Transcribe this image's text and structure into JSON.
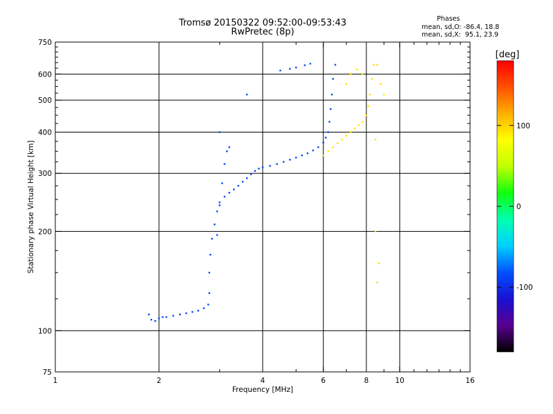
{
  "header": {
    "title_line1": "Tromsø 20150322 09:52:00-09:53:43",
    "title_line2": "RwPretec (8p)"
  },
  "stats": {
    "heading": "Phases",
    "o_mode": "mean, sd,O: -86.4, 18.8",
    "x_mode": "mean, sd,X:  95.1, 23.9"
  },
  "colorbar": {
    "unit_label": "[deg]",
    "ticks": [
      {
        "value": 100,
        "label": "100"
      },
      {
        "value": 0,
        "label": "0"
      },
      {
        "value": -100,
        "label": "-100"
      }
    ],
    "range": [
      -180,
      180
    ],
    "colors": [
      "#000000",
      "#5a0090",
      "#1a10d0",
      "#0050ff",
      "#00d0ff",
      "#00ffb0",
      "#10ff10",
      "#c0ff00",
      "#ffff00",
      "#ffb000",
      "#ff5000",
      "#ff0000"
    ]
  },
  "chart_data": {
    "type": "scatter",
    "xlabel": "Frequency [MHz]",
    "ylabel": "Stationary phase Virtual Height [km]",
    "x_scale": "log",
    "y_scale": "log",
    "xlim": [
      1,
      16
    ],
    "ylim": [
      75,
      750
    ],
    "xticks": [
      {
        "value": 1,
        "label": "1"
      },
      {
        "value": 2,
        "label": "2"
      },
      {
        "value": 4,
        "label": "4"
      },
      {
        "value": 6,
        "label": "6"
      },
      {
        "value": 8,
        "label": "8"
      },
      {
        "value": 10,
        "label": "10"
      },
      {
        "value": 16,
        "label": "16"
      }
    ],
    "yticks": [
      {
        "value": 75,
        "label": "75"
      },
      {
        "value": 100,
        "label": "100"
      },
      {
        "value": 200,
        "label": "200"
      },
      {
        "value": 300,
        "label": "300"
      },
      {
        "value": 400,
        "label": "400"
      },
      {
        "value": 500,
        "label": "500"
      },
      {
        "value": 600,
        "label": "600"
      },
      {
        "value": 750,
        "label": "750"
      }
    ],
    "x_gridlines": [
      2,
      4,
      6,
      8,
      10
    ],
    "y_gridlines": [
      100,
      200,
      300,
      400,
      500,
      600
    ],
    "color_variable": "phase [deg]",
    "traces": [
      {
        "mode": "O",
        "phase_mean": -86.4,
        "phase_sd": 18.8,
        "points": [
          [
            1.87,
            112
          ],
          [
            1.9,
            108
          ],
          [
            1.95,
            107
          ],
          [
            2.0,
            109
          ],
          [
            2.05,
            110
          ],
          [
            2.1,
            110
          ],
          [
            2.2,
            111
          ],
          [
            2.3,
            112
          ],
          [
            2.4,
            113
          ],
          [
            2.5,
            114
          ],
          [
            2.6,
            115
          ],
          [
            2.7,
            117
          ],
          [
            2.78,
            120
          ],
          [
            2.8,
            130
          ],
          [
            2.8,
            150
          ],
          [
            2.82,
            170
          ],
          [
            2.85,
            190
          ],
          [
            2.9,
            210
          ],
          [
            2.95,
            230
          ],
          [
            3.0,
            245
          ],
          [
            3.1,
            255
          ],
          [
            3.2,
            262
          ],
          [
            3.3,
            268
          ],
          [
            3.4,
            275
          ],
          [
            3.5,
            283
          ],
          [
            3.6,
            290
          ],
          [
            3.7,
            298
          ],
          [
            3.8,
            305
          ],
          [
            3.9,
            310
          ],
          [
            4.0,
            313
          ],
          [
            4.2,
            316
          ],
          [
            4.4,
            320
          ],
          [
            4.6,
            325
          ],
          [
            4.8,
            330
          ],
          [
            5.0,
            335
          ],
          [
            5.2,
            340
          ],
          [
            5.4,
            345
          ],
          [
            5.6,
            352
          ],
          [
            5.8,
            360
          ],
          [
            6.0,
            372
          ],
          [
            6.1,
            385
          ],
          [
            6.2,
            400
          ],
          [
            6.25,
            430
          ],
          [
            6.3,
            470
          ],
          [
            6.35,
            520
          ],
          [
            6.4,
            580
          ],
          [
            6.5,
            640
          ],
          [
            2.95,
            195
          ],
          [
            3.0,
            240
          ],
          [
            3.05,
            280
          ],
          [
            3.1,
            320
          ],
          [
            3.15,
            350
          ],
          [
            3.2,
            360
          ],
          [
            3.0,
            400
          ],
          [
            4.5,
            615
          ],
          [
            4.8,
            622
          ],
          [
            5.0,
            628
          ],
          [
            5.3,
            638
          ],
          [
            5.5,
            645
          ],
          [
            3.6,
            520
          ]
        ]
      },
      {
        "mode": "X",
        "phase_mean": 95.1,
        "phase_sd": 23.9,
        "points": [
          [
            6.0,
            340
          ],
          [
            6.2,
            350
          ],
          [
            6.4,
            360
          ],
          [
            6.6,
            370
          ],
          [
            6.8,
            380
          ],
          [
            7.0,
            390
          ],
          [
            7.2,
            400
          ],
          [
            7.4,
            410
          ],
          [
            7.6,
            420
          ],
          [
            7.8,
            430
          ],
          [
            8.0,
            450
          ],
          [
            8.1,
            480
          ],
          [
            8.2,
            520
          ],
          [
            8.3,
            580
          ],
          [
            8.4,
            640
          ],
          [
            7.0,
            560
          ],
          [
            7.2,
            600
          ],
          [
            7.5,
            620
          ],
          [
            7.8,
            600
          ],
          [
            8.6,
            640
          ],
          [
            8.8,
            560
          ],
          [
            9.0,
            520
          ],
          [
            8.5,
            380
          ],
          [
            8.5,
            200
          ],
          [
            8.7,
            160
          ],
          [
            8.6,
            140
          ]
        ]
      }
    ]
  }
}
